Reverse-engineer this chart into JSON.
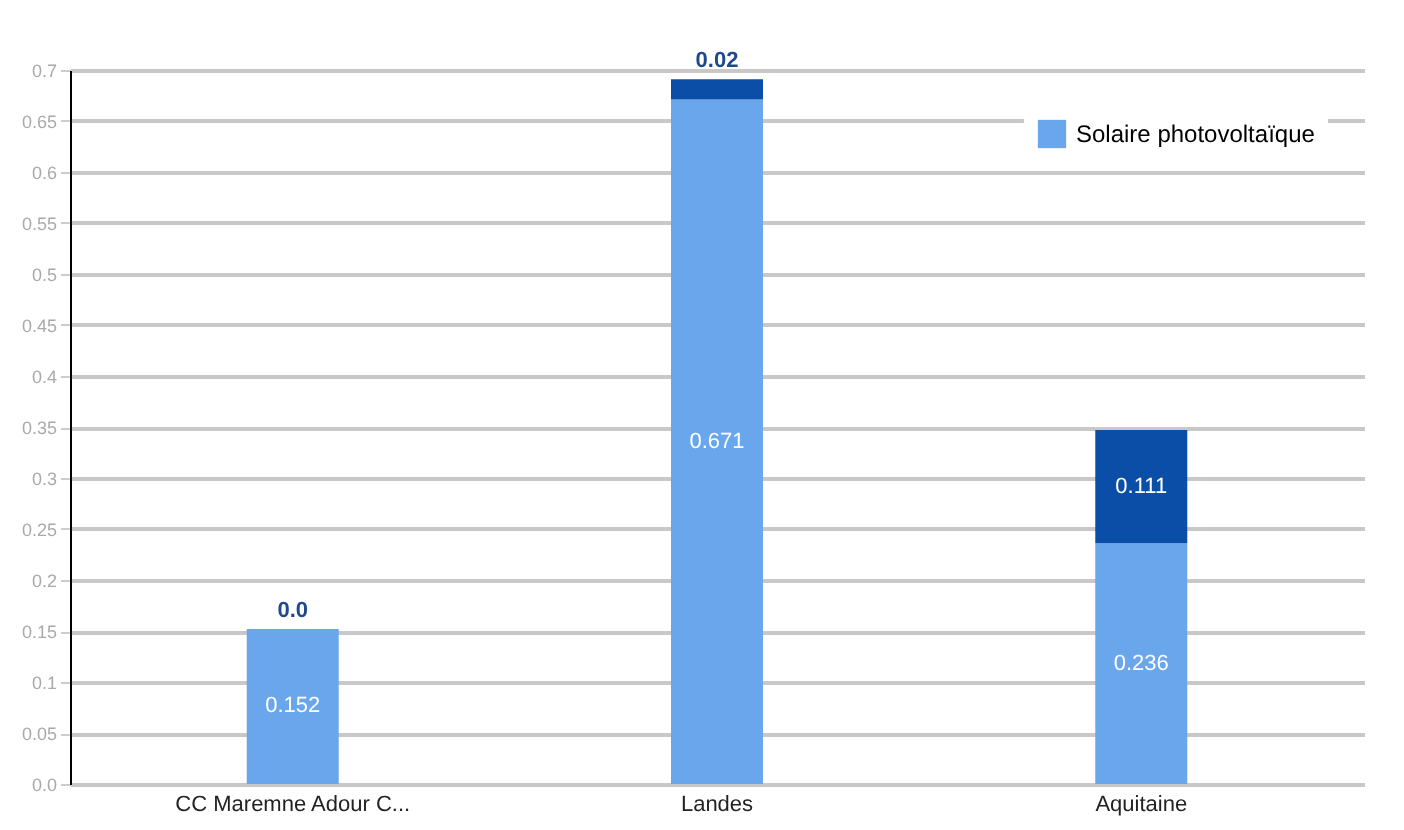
{
  "chart_data": {
    "type": "bar",
    "stacked": true,
    "categories": [
      "CC Maremne Adour C...",
      "Landes",
      "Aquitaine"
    ],
    "series": [
      {
        "name": "Solaire photovoltaïque",
        "color": "#6aa6ec",
        "values": [
          0.152,
          0.671,
          0.236
        ],
        "value_labels": [
          "0.152",
          "0.671",
          "0.236"
        ]
      },
      {
        "color": "#0b4ea8",
        "values": [
          0.0,
          0.02,
          0.111
        ],
        "value_labels": [
          "0.0",
          "0.02",
          "0.111"
        ]
      }
    ],
    "ylim": [
      0,
      0.7
    ],
    "yticks": [
      {
        "value": 0,
        "label": "0.0"
      },
      0.05,
      0.1,
      0.15,
      0.2,
      0.25,
      0.3,
      0.35,
      0.4,
      0.45,
      0.5,
      0.55,
      0.6,
      0.65,
      0.7
    ],
    "grid": "y",
    "legend": "top right"
  }
}
